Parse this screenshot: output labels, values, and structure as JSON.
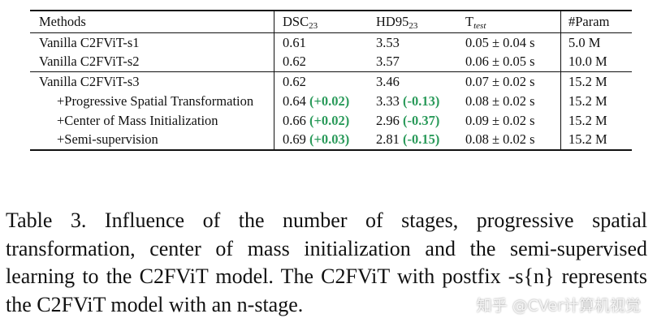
{
  "table": {
    "headers": {
      "methods": "Methods",
      "dsc": "DSC",
      "dsc_sub": "23",
      "hd": "HD95",
      "hd_sub": "23",
      "t": "T",
      "t_sub": "test",
      "param": "#Param"
    },
    "rows": [
      {
        "method": "Vanilla C2FViT-s1",
        "dsc": "0.61",
        "dsc_delta": "",
        "hd": "3.53",
        "hd_delta": "",
        "t": "0.05 ± 0.04 s",
        "param": "5.0 M"
      },
      {
        "method": "Vanilla C2FViT-s2",
        "dsc": "0.62",
        "dsc_delta": "",
        "hd": "3.57",
        "hd_delta": "",
        "t": "0.06 ± 0.05 s",
        "param": "10.0 M"
      },
      {
        "method": "Vanilla C2FViT-s3",
        "dsc": "0.62",
        "dsc_delta": "",
        "hd": "3.46",
        "hd_delta": "",
        "t": "0.07 ± 0.02 s",
        "param": "15.2 M"
      },
      {
        "method": "+Progressive Spatial Transformation",
        "dsc": "0.64",
        "dsc_delta": "(+0.02)",
        "hd": "3.33",
        "hd_delta": "(-0.13)",
        "t": "0.08 ± 0.02 s",
        "param": "15.2 M"
      },
      {
        "method": "+Center of Mass Initialization",
        "dsc": "0.66",
        "dsc_delta": "(+0.02)",
        "hd": "2.96",
        "hd_delta": "(-0.37)",
        "t": "0.09 ± 0.02 s",
        "param": "15.2 M"
      },
      {
        "method": "+Semi-supervision",
        "dsc": "0.69",
        "dsc_delta": "(+0.03)",
        "hd": "2.81",
        "hd_delta": "(-0.15)",
        "t": "0.08 ± 0.02 s",
        "param": "15.2 M"
      }
    ]
  },
  "caption": "Table 3.  Influence of the number of stages, progressive spatial transformation, center of mass initialization and the semi-supervised learning to the C2FViT model. The C2FViT with postfix -s{n} represents the C2FViT model with an n-stage.",
  "watermark": "知乎 @CVer计算机视觉",
  "colors": {
    "delta": "#2a9a5a"
  }
}
